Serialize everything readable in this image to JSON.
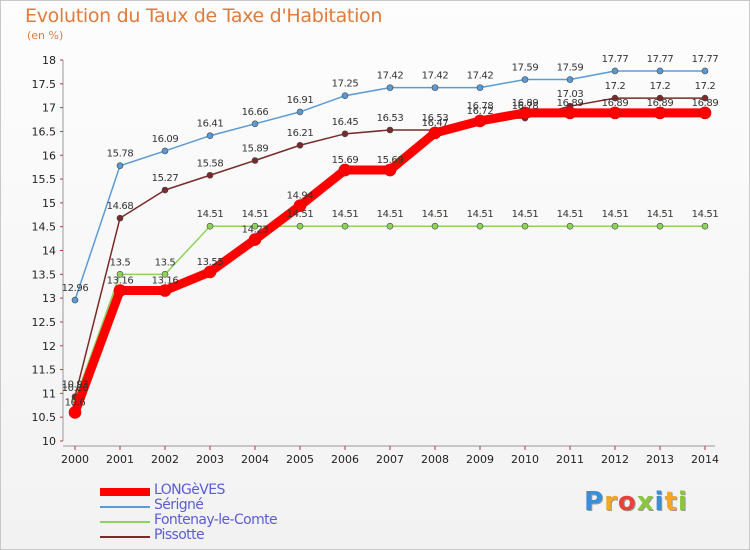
{
  "title": "Evolution du Taux de Taxe d'Habitation",
  "unit": "(en %)",
  "brand": {
    "text": "Proxiti",
    "colors": [
      "#3a8ed8",
      "#f5a623",
      "#e8423a",
      "#8cc63f",
      "#3a8ed8",
      "#f5a623",
      "#8cc63f"
    ]
  },
  "chart_data": {
    "type": "line",
    "title": "Evolution du Taux de Taxe d'Habitation",
    "ylabel": "(en %)",
    "x": [
      2000,
      2001,
      2002,
      2003,
      2004,
      2005,
      2006,
      2007,
      2008,
      2009,
      2010,
      2011,
      2012,
      2013,
      2014
    ],
    "ylim": [
      10,
      18
    ],
    "yticks": [
      10,
      10.5,
      11,
      11.5,
      12,
      12.5,
      13,
      13.5,
      14,
      14.5,
      15,
      15.5,
      16,
      16.5,
      17,
      17.5,
      18
    ],
    "grid": false,
    "legend": "bottom-left",
    "series": [
      {
        "name": "LONGèVES",
        "color": "#ff0000",
        "values": [
          10.6,
          13.16,
          13.16,
          13.55,
          14.23,
          14.94,
          15.69,
          15.69,
          16.47,
          16.72,
          16.89,
          16.89,
          16.89,
          16.89,
          16.89
        ]
      },
      {
        "name": "Sérigné",
        "color": "#5b9bd5",
        "values": [
          12.96,
          15.78,
          16.09,
          16.41,
          16.66,
          16.91,
          17.25,
          17.42,
          17.42,
          17.42,
          17.59,
          17.59,
          17.77,
          17.77,
          17.77
        ]
      },
      {
        "name": "Fontenay-le-Comte",
        "color": "#8fd35c",
        "values": [
          10.86,
          13.5,
          13.5,
          14.51,
          14.51,
          14.51,
          14.51,
          14.51,
          14.51,
          14.51,
          14.51,
          14.51,
          14.51,
          14.51,
          14.51
        ]
      },
      {
        "name": "Pissotte",
        "color": "#7a2a2a",
        "values": [
          10.93,
          14.68,
          15.27,
          15.58,
          15.89,
          16.21,
          16.45,
          16.53,
          16.53,
          16.78,
          16.78,
          17.03,
          17.2,
          17.2,
          17.2
        ]
      }
    ]
  }
}
